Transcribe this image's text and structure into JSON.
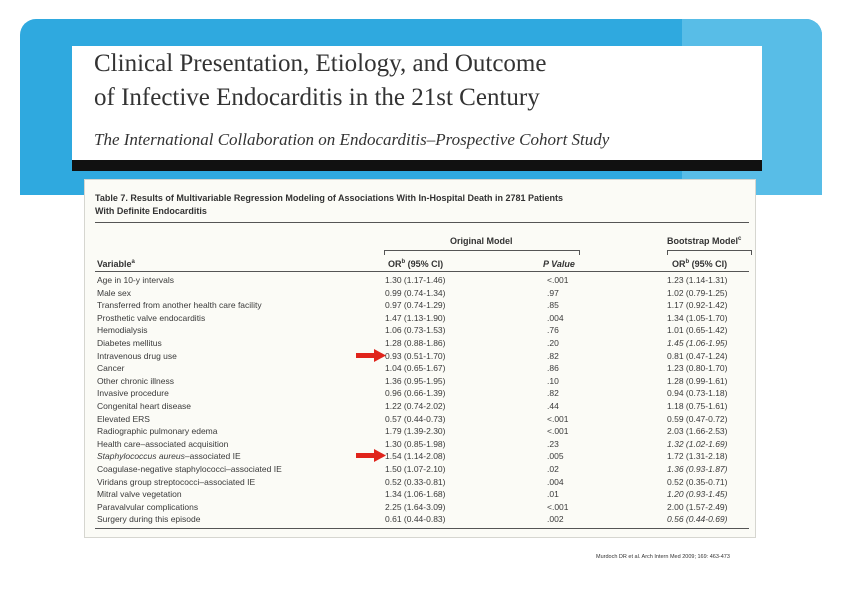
{
  "header": {
    "title_line1": "Clinical Presentation, Etiology, and Outcome",
    "title_line2": "of Infective Endocarditis in the 21st Century",
    "subtitle": "The International Collaboration on Endocarditis–Prospective Cohort Study"
  },
  "table": {
    "caption_line1": "Table 7. Results of Multivariable Regression Modeling of Associations With In-Hospital Death in 2781 Patients",
    "caption_line2": "With Definite Endocarditis",
    "group_original": "Original Model",
    "group_bootstrap": "Bootstrap Model",
    "group_bootstrap_sup": "c",
    "col_variable": "Variable",
    "col_variable_sup": "a",
    "col_or": "OR",
    "col_or_sup": "b",
    "col_or_rest": " (95% CI)",
    "col_p": "P Value",
    "col_b_or": "OR",
    "col_b_sup": "b",
    "col_b_rest": " (95% CI)",
    "rows": [
      {
        "variable": "Age in 10-y intervals",
        "or": "1.30 (1.17-1.46)",
        "p": "<.001",
        "boot": "1.23 (1.14-1.31)"
      },
      {
        "variable": "Male sex",
        "or": "0.99 (0.74-1.34)",
        "p": ".97",
        "boot": "1.02 (0.79-1.25)"
      },
      {
        "variable": "Transferred from another health care facility",
        "or": "0.97 (0.74-1.29)",
        "p": ".85",
        "boot": "1.17 (0.92-1.42)"
      },
      {
        "variable": "Prosthetic valve endocarditis",
        "or": "1.47 (1.13-1.90)",
        "p": ".004",
        "boot": "1.34 (1.05-1.70)"
      },
      {
        "variable": "Hemodialysis",
        "or": "1.06 (0.73-1.53)",
        "p": ".76",
        "boot": "1.01 (0.65-1.42)"
      },
      {
        "variable": "Diabetes mellitus",
        "or": "1.28 (0.88-1.86)",
        "p": ".20",
        "boot": "1.45 (1.06-1.95)"
      },
      {
        "variable": "Intravenous drug use",
        "or": "0.93 (0.51-1.70)",
        "p": ".82",
        "boot": "0.81 (0.47-1.24)"
      },
      {
        "variable": "Cancer",
        "or": "1.04 (0.65-1.67)",
        "p": ".86",
        "boot": "1.23 (0.80-1.70)"
      },
      {
        "variable": "Other chronic illness",
        "or": "1.36 (0.95-1.95)",
        "p": ".10",
        "boot": "1.28 (0.99-1.61)"
      },
      {
        "variable": "Invasive procedure",
        "or": "0.96 (0.66-1.39)",
        "p": ".82",
        "boot": "0.94 (0.73-1.18)"
      },
      {
        "variable": "Congenital heart disease",
        "or": "1.22 (0.74-2.02)",
        "p": ".44",
        "boot": "1.18 (0.75-1.61)"
      },
      {
        "variable": "Elevated ERS",
        "or": "0.57 (0.44-0.73)",
        "p": "<.001",
        "boot": "0.59 (0.47-0.72)"
      },
      {
        "variable": "Radiographic pulmonary edema",
        "or": "1.79 (1.39-2.30)",
        "p": "<.001",
        "boot": "2.03 (1.66-2.53)"
      },
      {
        "variable": "Health care–associated acquisition",
        "or": "1.30 (0.85-1.98)",
        "p": ".23",
        "boot": "1.32 (1.02-1.69)"
      },
      {
        "variable_italic": "Staphylococcus aureus",
        "variable": "–associated IE",
        "or": "1.54 (1.14-2.08)",
        "p": ".005",
        "boot": "1.72 (1.31-2.18)"
      },
      {
        "variable": "Coagulase-negative staphylococci–associated IE",
        "or": "1.50 (1.07-2.10)",
        "p": ".02",
        "boot": "1.36 (0.93-1.87)"
      },
      {
        "variable": "Viridans group streptococci–associated IE",
        "or": "0.52 (0.33-0.81)",
        "p": ".004",
        "boot": "0.52 (0.35-0.71)"
      },
      {
        "variable": "Mitral valve vegetation",
        "or": "1.34 (1.06-1.68)",
        "p": ".01",
        "boot": "1.20 (0.93-1.45)"
      },
      {
        "variable": "Paravalvular complications",
        "or": "2.25 (1.64-3.09)",
        "p": "<.001",
        "boot": "2.00 (1.57-2.49)"
      },
      {
        "variable": "Surgery during this episode",
        "or": "0.61 (0.44-0.83)",
        "p": ".002",
        "boot": "0.56 (0.44-0.69)"
      }
    ]
  },
  "citation": "Murdoch DR et al. Arch Intern Med 2009; 169: 463-473",
  "colors": {
    "banner": "#2fa9df",
    "arrow": "#e0241b"
  },
  "arrows": {
    "icon": "right-arrow-icon"
  }
}
